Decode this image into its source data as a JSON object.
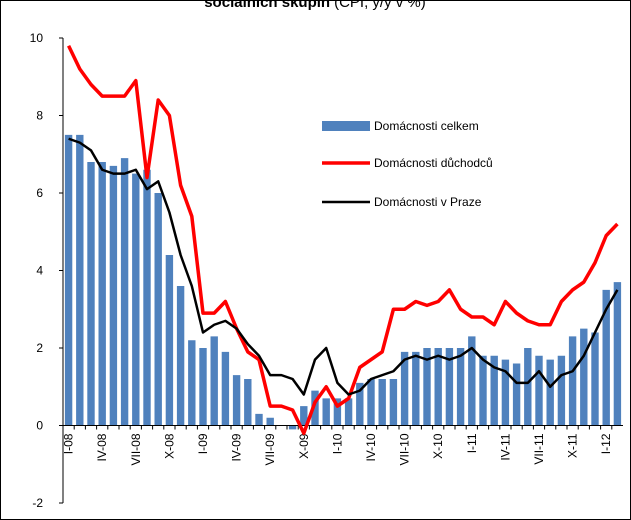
{
  "chart_data": {
    "type": "bar-line",
    "title": "sociálních skupin",
    "subtitle": "(CPI, y/y v %)",
    "categories": [
      "I-08",
      null,
      null,
      "IV-08",
      null,
      null,
      "VII-08",
      null,
      null,
      "X-08",
      null,
      null,
      "I-09",
      null,
      null,
      "IV-09",
      null,
      null,
      "VII-09",
      null,
      null,
      "X-09",
      null,
      null,
      "I-10",
      null,
      null,
      "IV-10",
      null,
      null,
      "VII-10",
      null,
      null,
      "X-10",
      null,
      null,
      "I-11",
      null,
      null,
      "IV-11",
      null,
      null,
      "VII-11",
      null,
      null,
      "X-11",
      null,
      null,
      "I-12",
      null
    ],
    "series": [
      {
        "name": "Domácnosti celkem",
        "kind": "bar",
        "color": "#4f81bd",
        "values": [
          7.5,
          7.5,
          6.8,
          6.8,
          6.7,
          6.9,
          6.5,
          6.6,
          6.0,
          4.4,
          3.6,
          2.2,
          2.0,
          2.3,
          1.9,
          1.3,
          1.2,
          0.3,
          0.2,
          0.0,
          -0.1,
          0.5,
          0.9,
          0.7,
          0.7,
          0.7,
          1.1,
          1.2,
          1.2,
          1.2,
          1.9,
          1.9,
          2.0,
          2.0,
          2.0,
          2.0,
          2.3,
          1.8,
          1.8,
          1.7,
          1.6,
          2.0,
          1.8,
          1.7,
          1.8,
          2.3,
          2.5,
          2.4,
          3.5,
          3.7
        ]
      },
      {
        "name": "Domácnosti důchodců",
        "kind": "line",
        "color": "#ff0000",
        "values": [
          9.8,
          9.2,
          8.8,
          8.5,
          8.5,
          8.5,
          8.9,
          6.4,
          8.4,
          8.0,
          6.2,
          5.4,
          2.9,
          2.9,
          3.2,
          2.5,
          1.9,
          1.7,
          0.5,
          0.5,
          0.4,
          -0.2,
          0.6,
          1.0,
          0.5,
          0.7,
          1.5,
          1.7,
          1.9,
          3.0,
          3.0,
          3.2,
          3.1,
          3.2,
          3.5,
          3.0,
          2.8,
          2.8,
          2.6,
          3.2,
          2.9,
          2.7,
          2.6,
          2.6,
          3.2,
          3.5,
          3.7,
          4.2,
          4.9,
          5.2
        ]
      },
      {
        "name": "Domácnosti v Praze",
        "kind": "line",
        "color": "#000000",
        "values": [
          7.4,
          7.3,
          7.1,
          6.6,
          6.5,
          6.5,
          6.6,
          6.1,
          6.3,
          5.5,
          4.4,
          3.6,
          2.4,
          2.6,
          2.7,
          2.5,
          2.1,
          1.8,
          1.3,
          1.3,
          1.2,
          0.8,
          1.7,
          2.0,
          1.1,
          0.8,
          0.9,
          1.2,
          1.3,
          1.4,
          1.7,
          1.8,
          1.7,
          1.8,
          1.7,
          1.8,
          2.0,
          1.7,
          1.5,
          1.4,
          1.1,
          1.1,
          1.4,
          1.0,
          1.3,
          1.4,
          1.8,
          2.4,
          3.0,
          3.5
        ]
      }
    ],
    "ylim": [
      -2,
      10
    ],
    "yticks": [
      -2,
      0,
      2,
      4,
      6,
      8,
      10
    ]
  }
}
